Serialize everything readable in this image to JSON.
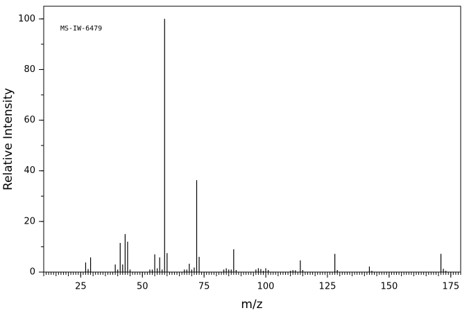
{
  "chart_data": {
    "type": "stem",
    "annotation": "MS-IW-6479",
    "x_label": "m/z",
    "y_label": "Relative Intensity",
    "x": [
      27,
      28,
      29,
      39,
      40,
      41,
      42,
      43,
      44,
      45,
      53,
      54,
      55,
      56,
      57,
      58,
      59,
      60,
      67,
      68,
      69,
      70,
      71,
      72,
      73,
      83,
      84,
      85,
      86,
      87,
      88,
      96,
      97,
      98,
      99,
      100,
      101,
      110,
      111,
      112,
      114,
      115,
      128,
      129,
      142,
      143,
      171,
      172,
      173
    ],
    "values": [
      3.8,
      1.2,
      5.8,
      3,
      1,
      11.5,
      3,
      15,
      12,
      1,
      1,
      1,
      7,
      1.5,
      5.8,
      1,
      100,
      7.5,
      1,
      1,
      3.3,
      1,
      1.8,
      36.3,
      6,
      1,
      1.5,
      1,
      1,
      9,
      0.8,
      1,
      1.5,
      1.2,
      0.5,
      1.5,
      0.8,
      0.5,
      0.8,
      0.7,
      4.6,
      0.8,
      7.2,
      0.8,
      2.2,
      0.5,
      7.2,
      1.3,
      0.5
    ],
    "color": "#000000",
    "xlim": [
      10,
      179
    ],
    "xticks": [
      25,
      50,
      75,
      100,
      125,
      150,
      175
    ],
    "ylim": [
      0,
      105
    ],
    "yticks": [
      0,
      20,
      40,
      60,
      80,
      100
    ]
  }
}
